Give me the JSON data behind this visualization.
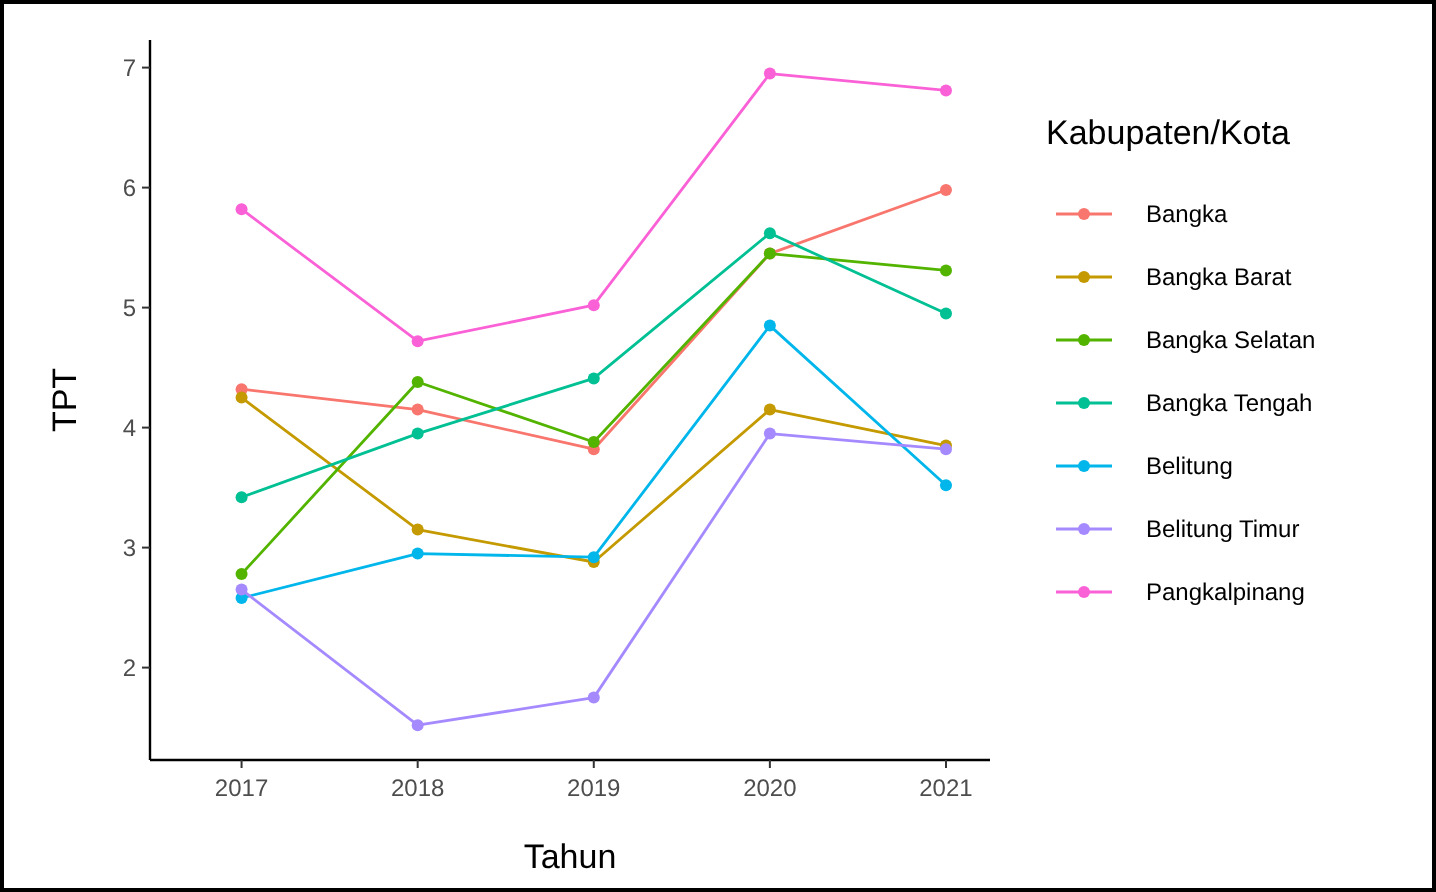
{
  "chart_data": {
    "type": "line",
    "xlabel": "Tahun",
    "ylabel": "TPT",
    "legend_title": "Kabupaten/Kota",
    "x": [
      2017,
      2018,
      2019,
      2020,
      2021
    ],
    "xlim": [
      2016.48,
      2021.25
    ],
    "xticks": [
      2017,
      2018,
      2019,
      2020,
      2021
    ],
    "ylim": [
      1.23,
      7.23
    ],
    "yticks": [
      2,
      3,
      4,
      5,
      6,
      7
    ],
    "grid": false,
    "legend": "right",
    "marker": "circle",
    "line_style": "solid",
    "series": [
      {
        "name": "Bangka",
        "color": "#f8766d",
        "values": [
          4.32,
          4.15,
          3.82,
          5.45,
          5.98
        ]
      },
      {
        "name": "Bangka Barat",
        "color": "#c49a00",
        "values": [
          4.25,
          3.15,
          2.88,
          4.15,
          3.85
        ]
      },
      {
        "name": "Bangka Selatan",
        "color": "#53b400",
        "values": [
          2.78,
          4.38,
          3.88,
          5.45,
          5.31
        ]
      },
      {
        "name": "Bangka Tengah",
        "color": "#00c094",
        "values": [
          3.42,
          3.95,
          4.41,
          5.62,
          4.95
        ]
      },
      {
        "name": "Belitung",
        "color": "#00b6eb",
        "values": [
          2.58,
          2.95,
          2.92,
          4.85,
          3.52
        ]
      },
      {
        "name": "Belitung Timur",
        "color": "#a58aff",
        "values": [
          2.65,
          1.52,
          1.75,
          3.95,
          3.82
        ]
      },
      {
        "name": "Pangkalpinang",
        "color": "#fb61d7",
        "values": [
          5.82,
          4.72,
          5.02,
          6.95,
          6.81
        ]
      }
    ]
  }
}
